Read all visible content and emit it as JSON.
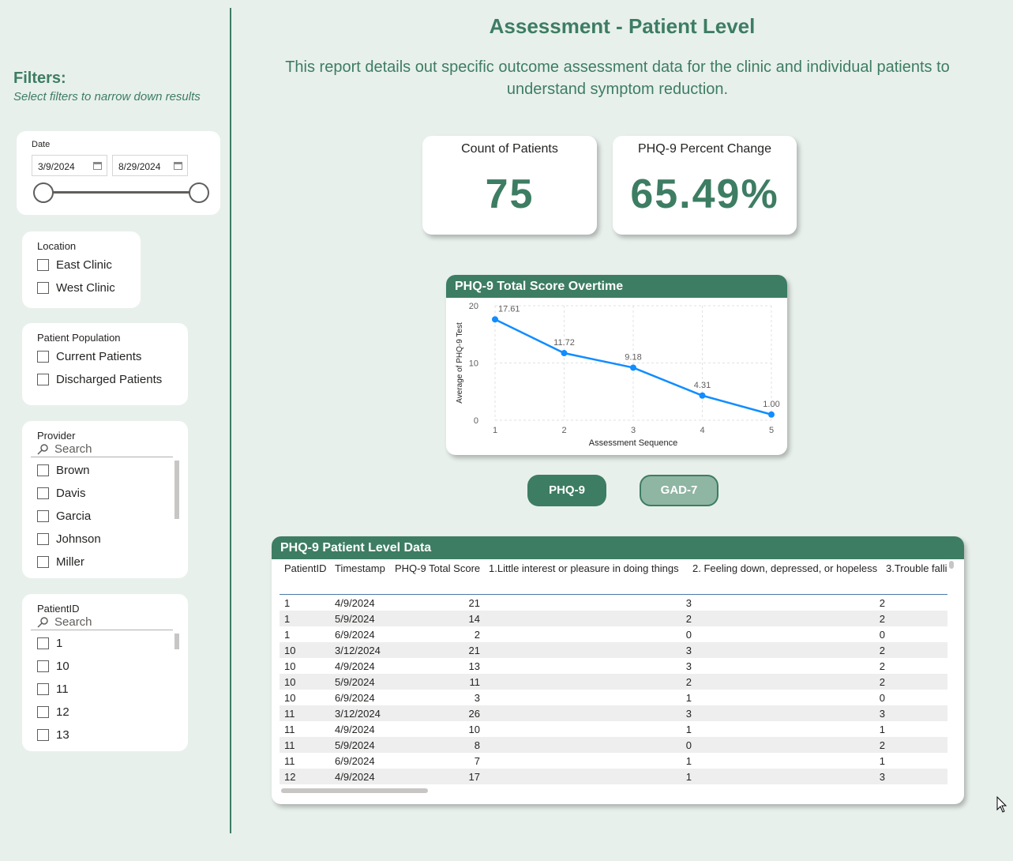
{
  "filters": {
    "title": "Filters:",
    "subtitle": "Select filters to narrow down results"
  },
  "date_slicer": {
    "title": "Date",
    "start": "3/9/2024",
    "end": "8/29/2024"
  },
  "location_slicer": {
    "title": "Location",
    "items": [
      "East Clinic",
      "West Clinic"
    ]
  },
  "population_slicer": {
    "title": "Patient Population",
    "items": [
      "Current Patients",
      "Discharged Patients"
    ]
  },
  "provider_slicer": {
    "title": "Provider",
    "search_placeholder": "Search",
    "items": [
      "Brown",
      "Davis",
      "Garcia",
      "Johnson",
      "Miller"
    ]
  },
  "patient_slicer": {
    "title": "PatientID",
    "search_placeholder": "Search",
    "items": [
      "1",
      "10",
      "11",
      "12",
      "13"
    ]
  },
  "header": {
    "title": "Assessment - Patient Level",
    "description": "This report details out specific outcome assessment data for the clinic and individual patients to understand symptom reduction."
  },
  "kpis": {
    "count_label": "Count of Patients",
    "count_value": "75",
    "change_label": "PHQ-9 Percent Change",
    "change_value": "65.49%"
  },
  "chart_data": {
    "type": "line",
    "title": "PHQ-9 Total Score Overtime",
    "xlabel": "Assessment Sequence",
    "ylabel": "Average of PHQ-9 Test",
    "x": [
      1,
      2,
      3,
      4,
      5
    ],
    "values": [
      17.61,
      11.72,
      9.18,
      4.31,
      1.0
    ],
    "data_labels": [
      "17.61",
      "11.72",
      "9.18",
      "4.31",
      "1.00"
    ],
    "yticks": [
      0,
      10,
      20
    ],
    "ylim": [
      0,
      20
    ],
    "grid": true,
    "color": "#118dff"
  },
  "toggles": {
    "phq9": "PHQ-9",
    "gad7": "GAD-7"
  },
  "table": {
    "title": "PHQ-9 Patient Level Data",
    "columns": [
      "PatientID",
      "Timestamp",
      "PHQ-9 Total Score",
      "1.Little interest or pleasure in doing things",
      "2. Feeling down, depressed, or hopeless",
      "3.Trouble falli"
    ],
    "rows": [
      [
        "1",
        "4/9/2024",
        "21",
        "3",
        "2"
      ],
      [
        "1",
        "5/9/2024",
        "14",
        "2",
        "2"
      ],
      [
        "1",
        "6/9/2024",
        "2",
        "0",
        "0"
      ],
      [
        "10",
        "3/12/2024",
        "21",
        "3",
        "2"
      ],
      [
        "10",
        "4/9/2024",
        "13",
        "3",
        "2"
      ],
      [
        "10",
        "5/9/2024",
        "11",
        "2",
        "2"
      ],
      [
        "10",
        "6/9/2024",
        "3",
        "1",
        "0"
      ],
      [
        "11",
        "3/12/2024",
        "26",
        "3",
        "3"
      ],
      [
        "11",
        "4/9/2024",
        "10",
        "1",
        "1"
      ],
      [
        "11",
        "5/9/2024",
        "8",
        "0",
        "2"
      ],
      [
        "11",
        "6/9/2024",
        "7",
        "1",
        "1"
      ],
      [
        "12",
        "4/9/2024",
        "17",
        "1",
        "3"
      ]
    ]
  },
  "colors": {
    "accent": "#3d7d63",
    "background": "#e8f0ec",
    "toggle_inactive": "#8fb5a3"
  }
}
